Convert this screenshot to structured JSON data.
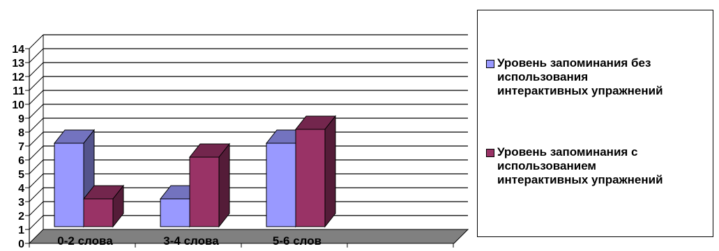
{
  "chart_data": {
    "type": "bar",
    "title": "",
    "xlabel": "",
    "ylabel": "",
    "categories": [
      "0-2 слова",
      "3-4 слова",
      "5-6 слов"
    ],
    "series": [
      {
        "name": "Уровень запоминания без\nиспользования\nинтерактивных упражнений",
        "values": [
          6,
          2,
          6
        ],
        "color": "#9999FF"
      },
      {
        "name": "Уровень запоминания с\nиспользованием\nинтерактивных упражнений",
        "values": [
          2,
          5,
          7
        ],
        "color": "#993366"
      }
    ],
    "ylim": [
      0,
      14
    ],
    "yticks": [
      0,
      1,
      2,
      3,
      4,
      5,
      6,
      7,
      8,
      9,
      10,
      11,
      12,
      13,
      14
    ],
    "grid": true,
    "legend": "right",
    "floor_color": "#808080"
  }
}
